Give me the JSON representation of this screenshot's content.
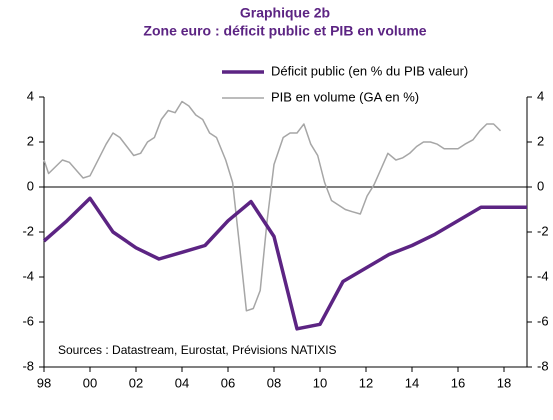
{
  "chart_data": {
    "type": "line",
    "title": "Graphique 2b",
    "subtitle": "Zone euro : déficit public et PIB en volume",
    "annotation": "Sources : Datastream, Eurostat, Prévisions NATIXIS",
    "xlim": [
      1998,
      2019
    ],
    "xticks": [
      {
        "value": 1998,
        "label": "98"
      },
      {
        "value": 2000,
        "label": "00"
      },
      {
        "value": 2002,
        "label": "02"
      },
      {
        "value": 2004,
        "label": "04"
      },
      {
        "value": 2006,
        "label": "06"
      },
      {
        "value": 2008,
        "label": "08"
      },
      {
        "value": 2010,
        "label": "10"
      },
      {
        "value": 2012,
        "label": "12"
      },
      {
        "value": 2014,
        "label": "14"
      },
      {
        "value": 2016,
        "label": "16"
      },
      {
        "value": 2018,
        "label": "18"
      }
    ],
    "ylim": [
      -8,
      4
    ],
    "yticks": [
      -8,
      -6,
      -4,
      -2,
      0,
      2,
      4
    ],
    "y2lim": [
      -8,
      4
    ],
    "y2ticks": [
      -8,
      -6,
      -4,
      -2,
      0,
      2,
      4
    ],
    "legend": "top-right",
    "series": [
      {
        "name": "Déficit public (en % du PIB valeur)",
        "color": "#5c2483",
        "width": 3.5,
        "x": [
          1998,
          1999,
          2000,
          2001,
          2002,
          2003,
          2004,
          2005,
          2006,
          2007,
          2008,
          2009,
          2010,
          2011,
          2012,
          2013,
          2014,
          2015,
          2016,
          2017,
          2018,
          2019
        ],
        "values": [
          -2.4,
          -1.5,
          -0.5,
          -2.0,
          -2.7,
          -3.2,
          -2.9,
          -2.6,
          -1.5,
          -0.65,
          -2.2,
          -6.3,
          -6.1,
          -4.2,
          -3.6,
          -3.0,
          -2.6,
          -2.1,
          -1.5,
          -0.9,
          -0.9,
          -0.9
        ]
      },
      {
        "name": "PIB en volume (GA en %)",
        "color": "#a6a6a6",
        "width": 1.5,
        "x": [
          1998.0,
          1998.2,
          1998.8,
          1999.1,
          1999.7,
          2000.0,
          2000.3,
          2000.7,
          2001.0,
          2001.3,
          2001.6,
          2001.9,
          2002.2,
          2002.5,
          2002.8,
          2003.1,
          2003.4,
          2003.7,
          2004.0,
          2004.3,
          2004.6,
          2004.9,
          2005.2,
          2005.5,
          2005.9,
          2006.2,
          2006.5,
          2006.8,
          2007.1,
          2007.4,
          2007.7,
          2008.0,
          2008.4,
          2008.7,
          2009.0,
          2009.3,
          2009.6,
          2009.9,
          2010.2,
          2010.5,
          2010.8,
          2011.1,
          2011.4,
          2011.75,
          2012.05,
          2012.35,
          2012.65,
          2012.95,
          2013.3,
          2013.6,
          2013.9,
          2014.2,
          2014.5,
          2014.8,
          2015.1,
          2015.4,
          2015.7,
          2016.0,
          2016.3,
          2016.65,
          2016.95,
          2017.25,
          2017.55,
          2017.85
        ],
        "values": [
          1.2,
          0.6,
          1.2,
          1.1,
          0.4,
          0.5,
          1.1,
          1.9,
          2.4,
          2.2,
          1.8,
          1.4,
          1.5,
          2.0,
          2.2,
          3.0,
          3.4,
          3.3,
          3.8,
          3.6,
          3.2,
          3.0,
          2.4,
          2.2,
          1.2,
          0.2,
          -2.6,
          -5.5,
          -5.4,
          -4.6,
          -1.5,
          1.0,
          2.2,
          2.4,
          2.4,
          2.8,
          1.9,
          1.4,
          0.2,
          -0.6,
          -0.8,
          -1.0,
          -1.1,
          -1.2,
          -0.4,
          0.1,
          0.8,
          1.5,
          1.2,
          1.3,
          1.5,
          1.8,
          2.0,
          2.0,
          1.9,
          1.7,
          1.7,
          1.7,
          1.9,
          2.1,
          2.5,
          2.8,
          2.8,
          2.5
        ]
      }
    ]
  }
}
